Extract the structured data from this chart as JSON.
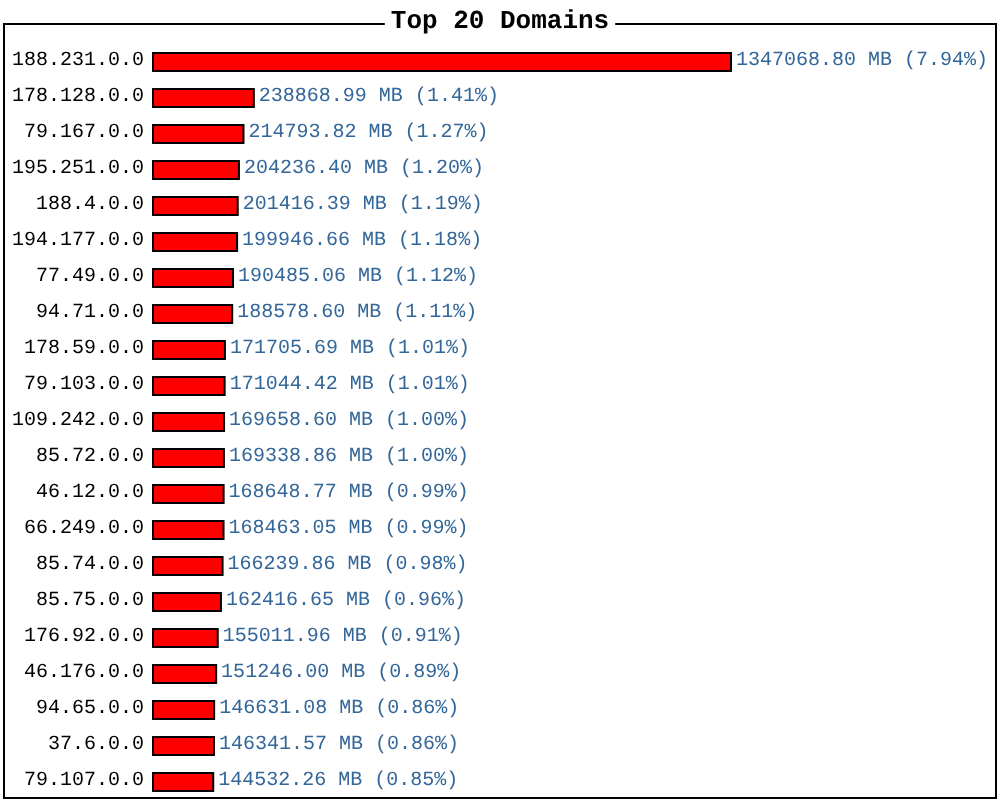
{
  "chart_data": {
    "type": "bar",
    "orientation": "horizontal",
    "title": "Top 20 Domains",
    "categories": [
      "188.231.0.0",
      "178.128.0.0",
      "79.167.0.0",
      "195.251.0.0",
      "188.4.0.0",
      "194.177.0.0",
      "77.49.0.0",
      "94.71.0.0",
      "178.59.0.0",
      "79.103.0.0",
      "109.242.0.0",
      "85.72.0.0",
      "46.12.0.0",
      "66.249.0.0",
      "85.74.0.0",
      "85.75.0.0",
      "176.92.0.0",
      "46.176.0.0",
      "94.65.0.0",
      "37.6.0.0",
      "79.107.0.0"
    ],
    "values": [
      1347068.8,
      238868.99,
      214793.82,
      204236.4,
      201416.39,
      199946.66,
      190485.06,
      188578.6,
      171705.69,
      171044.42,
      169658.6,
      169338.86,
      168648.77,
      168463.05,
      166239.86,
      162416.65,
      155011.96,
      151246.0,
      146631.08,
      146341.57,
      144532.26
    ],
    "value_labels": [
      "1347068.80 MB (7.94%)",
      "238868.99 MB (1.41%)",
      "214793.82 MB (1.27%)",
      "204236.40 MB (1.20%)",
      "201416.39 MB (1.19%)",
      "199946.66 MB (1.18%)",
      "190485.06 MB (1.12%)",
      "188578.60 MB (1.11%)",
      "171705.69 MB (1.01%)",
      "171044.42 MB (1.01%)",
      "169658.60 MB (1.00%)",
      "169338.86 MB (1.00%)",
      "168648.77 MB (0.99%)",
      "168463.05 MB (0.99%)",
      "166239.86 MB (0.98%)",
      "162416.65 MB (0.96%)",
      "155011.96 MB (0.91%)",
      "151246.00 MB (0.89%)",
      "146631.08 MB (0.86%)",
      "146341.57 MB (0.86%)",
      "144532.26 MB (0.85%)"
    ],
    "color": "#ff0000"
  }
}
